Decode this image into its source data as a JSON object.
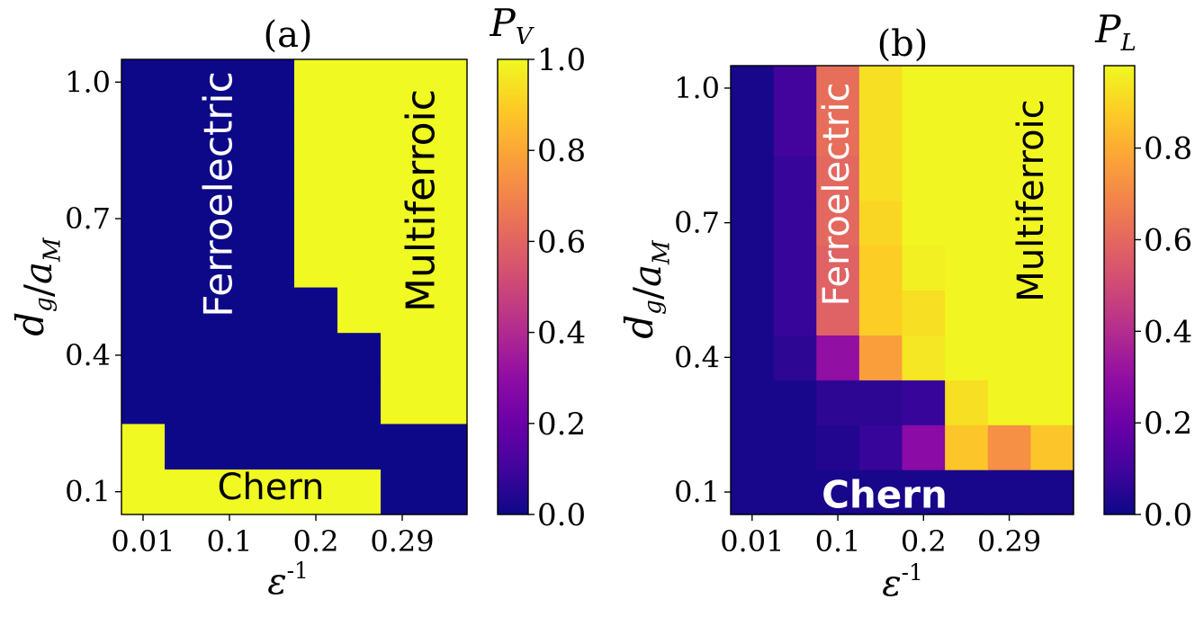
{
  "chart_data": [
    {
      "type": "heatmap",
      "title": "(a)",
      "colorbar_label": "P_V",
      "xlabel": "ε^{-1}",
      "ylabel": "d_g/a_M",
      "x_values": [
        0.01,
        0.05,
        0.1,
        0.15,
        0.2,
        0.25,
        0.29,
        0.35
      ],
      "y_values": [
        0.1,
        0.2,
        0.3,
        0.4,
        0.5,
        0.6,
        0.7,
        0.8,
        0.9,
        1.0
      ],
      "x_tick_labels": [
        "0.01",
        "0.1",
        "0.2",
        "0.29"
      ],
      "x_tick_indices": [
        0,
        2,
        4,
        6
      ],
      "y_tick_labels": [
        "0.1",
        "0.4",
        "0.7",
        "1.0"
      ],
      "y_tick_indices": [
        0,
        3,
        6,
        9
      ],
      "colorbar_ticks": [
        "0.0",
        "0.2",
        "0.4",
        "0.6",
        "0.8",
        "1.0"
      ],
      "colorbar_range": [
        0,
        1
      ],
      "z": [
        [
          1,
          1,
          1,
          1,
          1,
          1,
          0,
          0
        ],
        [
          1,
          0,
          0,
          0,
          0,
          0,
          0,
          0
        ],
        [
          0,
          0,
          0,
          0,
          0,
          0,
          1,
          1
        ],
        [
          0,
          0,
          0,
          0,
          0,
          0,
          1,
          1
        ],
        [
          0,
          0,
          0,
          0,
          0,
          1,
          1,
          1
        ],
        [
          0,
          0,
          0,
          0,
          1,
          1,
          1,
          1
        ],
        [
          0,
          0,
          0,
          0,
          1,
          1,
          1,
          1
        ],
        [
          0,
          0,
          0,
          0,
          1,
          1,
          1,
          1
        ],
        [
          0,
          0,
          0,
          0,
          1,
          1,
          1,
          1
        ],
        [
          0,
          0,
          0,
          0,
          1,
          1,
          1,
          1
        ]
      ],
      "annotations": [
        {
          "text": "Ferroelectric",
          "color": "white",
          "rotated": true
        },
        {
          "text": "Multiferroic",
          "color": "black",
          "rotated": true
        },
        {
          "text": "Chern",
          "color": "black",
          "rotated": false
        }
      ]
    },
    {
      "type": "heatmap",
      "title": "(b)",
      "colorbar_label": "P_L",
      "xlabel": "ε^{-1}",
      "ylabel": "d_g/a_M",
      "x_values": [
        0.01,
        0.05,
        0.1,
        0.15,
        0.2,
        0.25,
        0.29,
        0.35
      ],
      "y_values": [
        0.1,
        0.2,
        0.3,
        0.4,
        0.5,
        0.6,
        0.7,
        0.8,
        0.9,
        1.0
      ],
      "x_tick_labels": [
        "0.01",
        "0.1",
        "0.2",
        "0.29"
      ],
      "x_tick_indices": [
        0,
        2,
        4,
        6
      ],
      "y_tick_labels": [
        "0.1",
        "0.4",
        "0.7",
        "1.0"
      ],
      "y_tick_indices": [
        0,
        3,
        6,
        9
      ],
      "colorbar_ticks": [
        "0.0",
        "0.2",
        "0.4",
        "0.6",
        "0.8"
      ],
      "colorbar_range": [
        0,
        0.98
      ],
      "z": [
        [
          0.02,
          0.02,
          0.02,
          0.02,
          0.02,
          0.02,
          0.02,
          0.02
        ],
        [
          0.02,
          0.02,
          0.04,
          0.08,
          0.28,
          0.86,
          0.72,
          0.86
        ],
        [
          0.02,
          0.02,
          0.06,
          0.06,
          0.08,
          0.92,
          0.97,
          0.97
        ],
        [
          0.02,
          0.06,
          0.3,
          0.76,
          0.94,
          0.97,
          0.97,
          0.97
        ],
        [
          0.02,
          0.08,
          0.58,
          0.88,
          0.92,
          0.97,
          0.97,
          0.97
        ],
        [
          0.02,
          0.08,
          0.58,
          0.88,
          0.96,
          0.97,
          0.97,
          0.97
        ],
        [
          0.02,
          0.08,
          0.6,
          0.9,
          0.97,
          0.97,
          0.97,
          0.97
        ],
        [
          0.02,
          0.08,
          0.6,
          0.92,
          0.97,
          0.97,
          0.97,
          0.97
        ],
        [
          0.02,
          0.1,
          0.62,
          0.92,
          0.97,
          0.97,
          0.97,
          0.97
        ],
        [
          0.02,
          0.1,
          0.62,
          0.92,
          0.97,
          0.97,
          0.97,
          0.97
        ]
      ],
      "annotations": [
        {
          "text": "Ferroelectric",
          "color": "white",
          "rotated": true
        },
        {
          "text": "Multiferroic",
          "color": "black",
          "rotated": true
        },
        {
          "text": "Chern",
          "color": "white",
          "rotated": false
        }
      ]
    }
  ]
}
